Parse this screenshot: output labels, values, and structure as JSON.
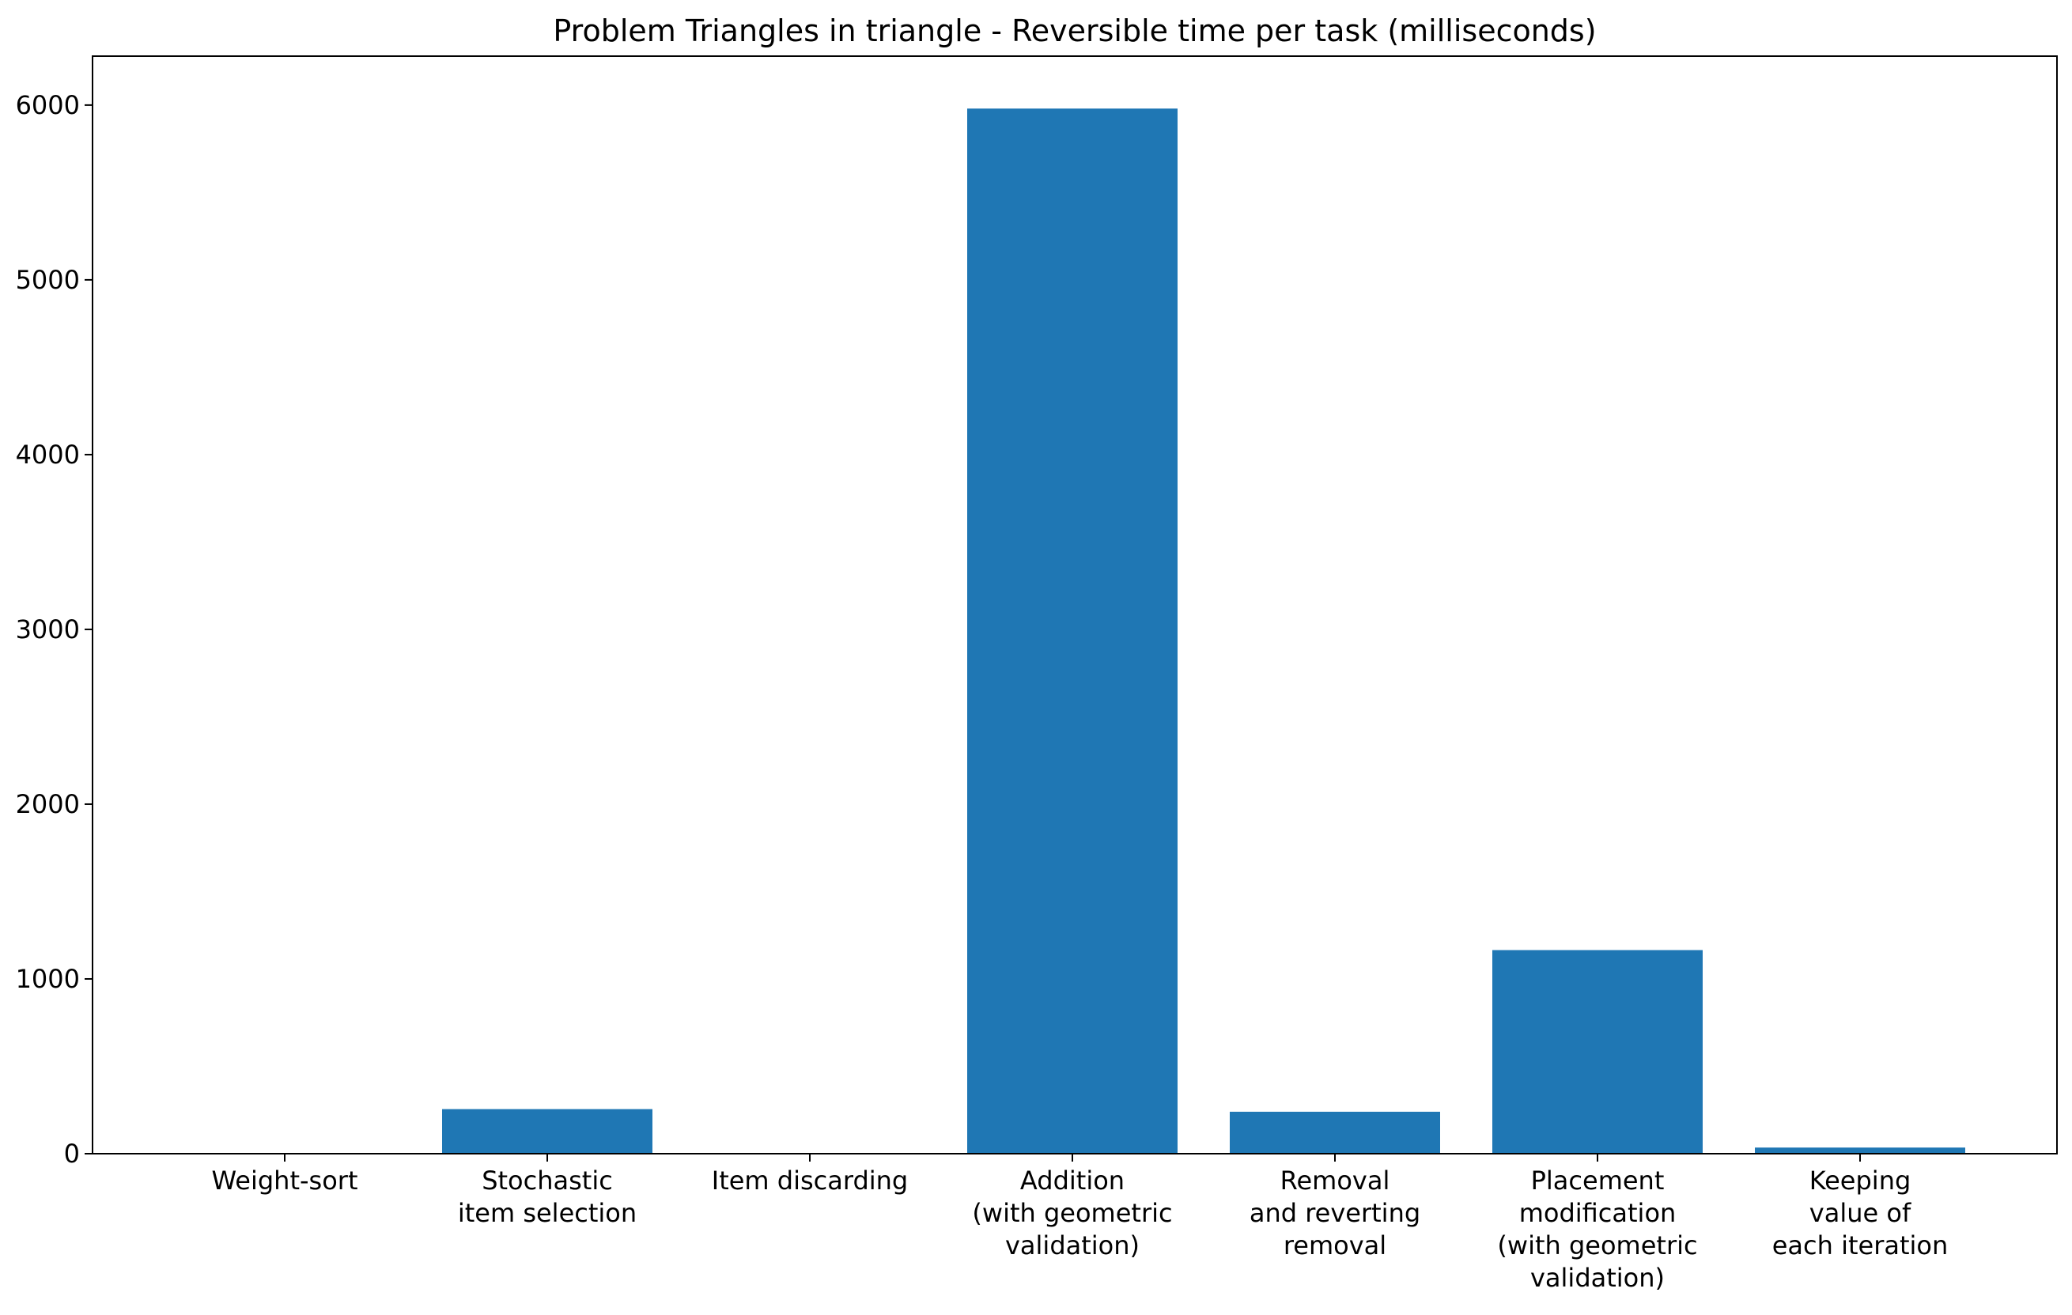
{
  "chart_data": {
    "type": "bar",
    "title": "Problem Triangles in triangle - Reversible time per task (milliseconds)",
    "xlabel": "",
    "ylabel": "",
    "categories": [
      [
        "Weight-sort"
      ],
      [
        "Stochastic",
        "item selection"
      ],
      [
        "Item discarding"
      ],
      [
        "Addition",
        "(with geometric",
        "validation)"
      ],
      [
        "Removal",
        "and reverting",
        "removal"
      ],
      [
        "Placement",
        "modification",
        "(with geometric",
        "validation)"
      ],
      [
        "Keeping",
        "value of",
        "each iteration"
      ]
    ],
    "values": [
      0,
      255,
      0,
      5980,
      240,
      1165,
      35
    ],
    "ylim": [
      0,
      6280
    ],
    "yticks": [
      0,
      1000,
      2000,
      3000,
      4000,
      5000,
      6000
    ],
    "bar_color": "#1f77b4",
    "grid": false,
    "legend": "none"
  }
}
